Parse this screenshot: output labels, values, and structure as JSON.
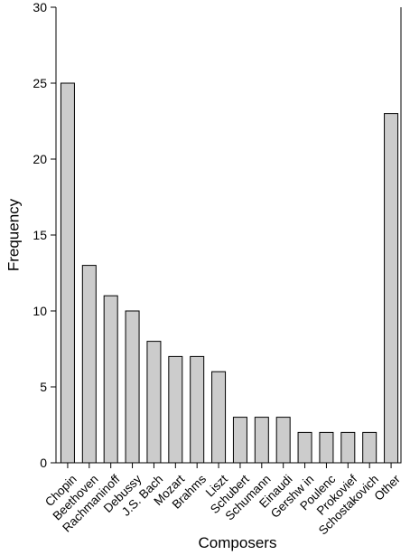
{
  "chart_data": {
    "type": "bar",
    "categories": [
      "Chopin",
      "Beethoven",
      "Rachmaninoff",
      "Debussy",
      "J.S. Bach",
      "Mozart",
      "Brahms",
      "Liszt",
      "Schubert",
      "Schumann",
      "Einaudi",
      "Gershw in",
      "Poulenc",
      "Prokovief",
      "Schostakovich",
      "Other"
    ],
    "values": [
      25,
      13,
      11,
      10,
      8,
      7,
      7,
      6,
      3,
      3,
      3,
      2,
      2,
      2,
      2,
      23
    ],
    "xlabel": "Composers",
    "ylabel": "Frequency",
    "ylim": [
      0,
      30
    ],
    "yticks": [
      0,
      5,
      10,
      15,
      20,
      25,
      30
    ],
    "grid": false,
    "bar_color": "#cccccc",
    "bar_edge_color": "#000000"
  }
}
